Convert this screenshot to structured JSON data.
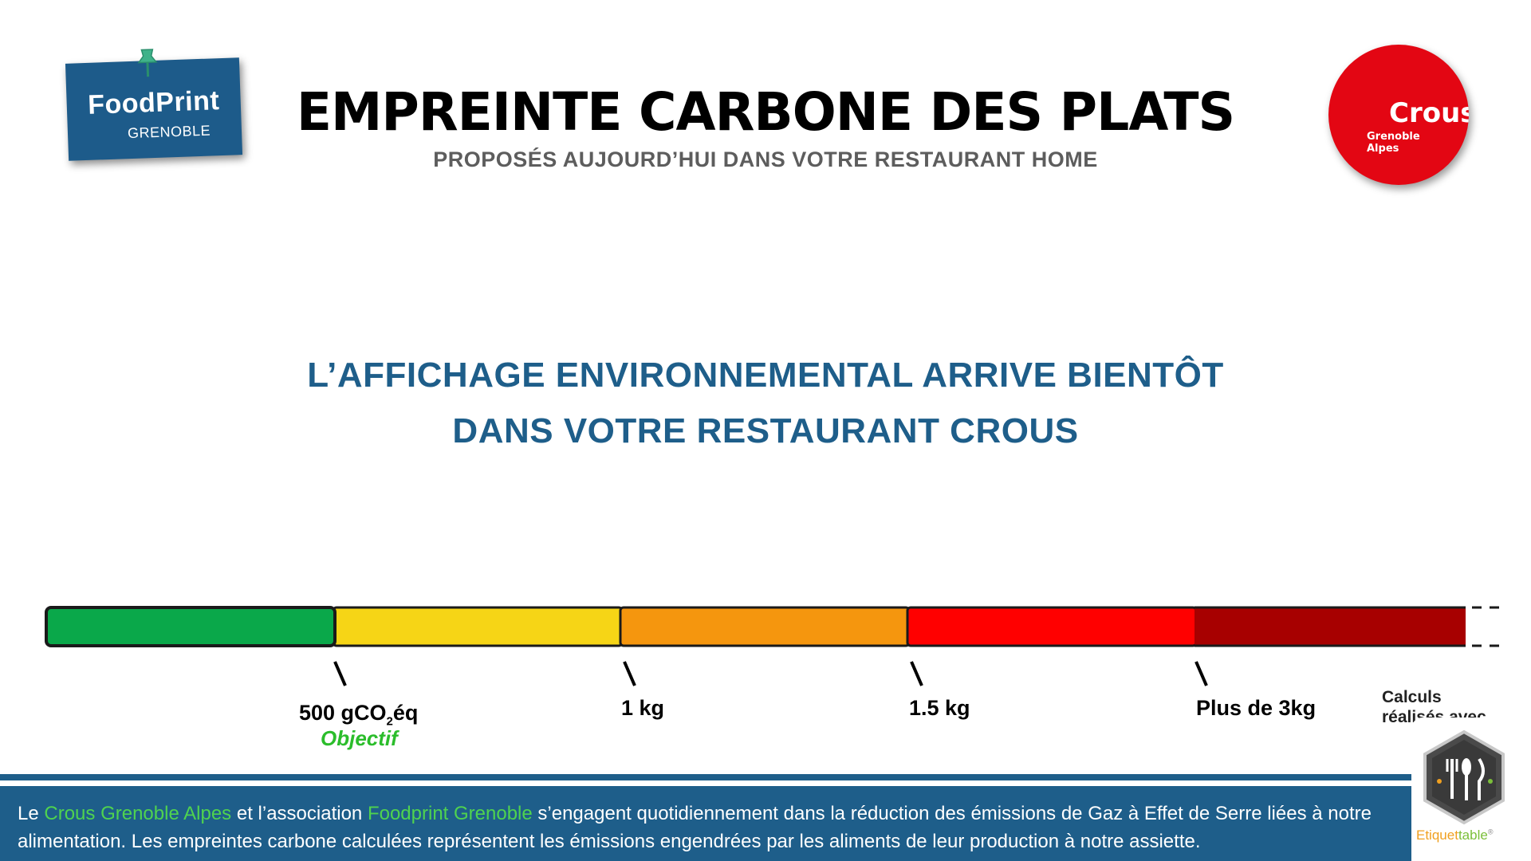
{
  "header": {
    "title": "EMPREINTE CARBONE DES PLATS",
    "subtitle": "PROPOSÉS AUJOURD’HUI DANS VOTRE RESTAURANT HOME"
  },
  "logos": {
    "foodprint": {
      "name": "FoodPrint",
      "city": "GRENOBLE",
      "icon": "pushpin-icon"
    },
    "crous": {
      "name": "Crous",
      "city_line1": "Grenoble",
      "city_line2": "Alpes"
    }
  },
  "announcement": {
    "line1": "L’AFFICHAGE ENVIRONNEMENTAL ARRIVE BIENTÔT",
    "line2": "DANS VOTRE RESTAURANT CROUS"
  },
  "scale": {
    "segments": [
      {
        "color": "#0aa84a"
      },
      {
        "color": "#f6d516"
      },
      {
        "color": "#f5960e"
      },
      {
        "color": "#ff0000"
      },
      {
        "color": "#a70000"
      }
    ],
    "ticks": {
      "t1_main": "500 gCO",
      "t1_sub": "2",
      "t1_end": "éq",
      "objective": "Objectif",
      "t2": "1 kg",
      "t3": "1.5 kg",
      "t4": "Plus de 3kg"
    },
    "calc_label": "Calculs réalisés avec"
  },
  "footer": {
    "p1": "Le ",
    "org1": "Crous Grenoble Alpes",
    "p2": " et l’association ",
    "org2": "Foodprint Grenoble",
    "p3": " s’engagent quotidiennement dans la réduction des émissions de Gaz à Effet de Serre liées à notre alimentation. Les empreintes carbone calculées représentent les émissions engendrées par les aliments de leur production à notre assiette."
  },
  "etiquettable": {
    "word_a": "Etiquet",
    "word_b": "table",
    "mark": "®",
    "icon": "cutlery-icon"
  }
}
